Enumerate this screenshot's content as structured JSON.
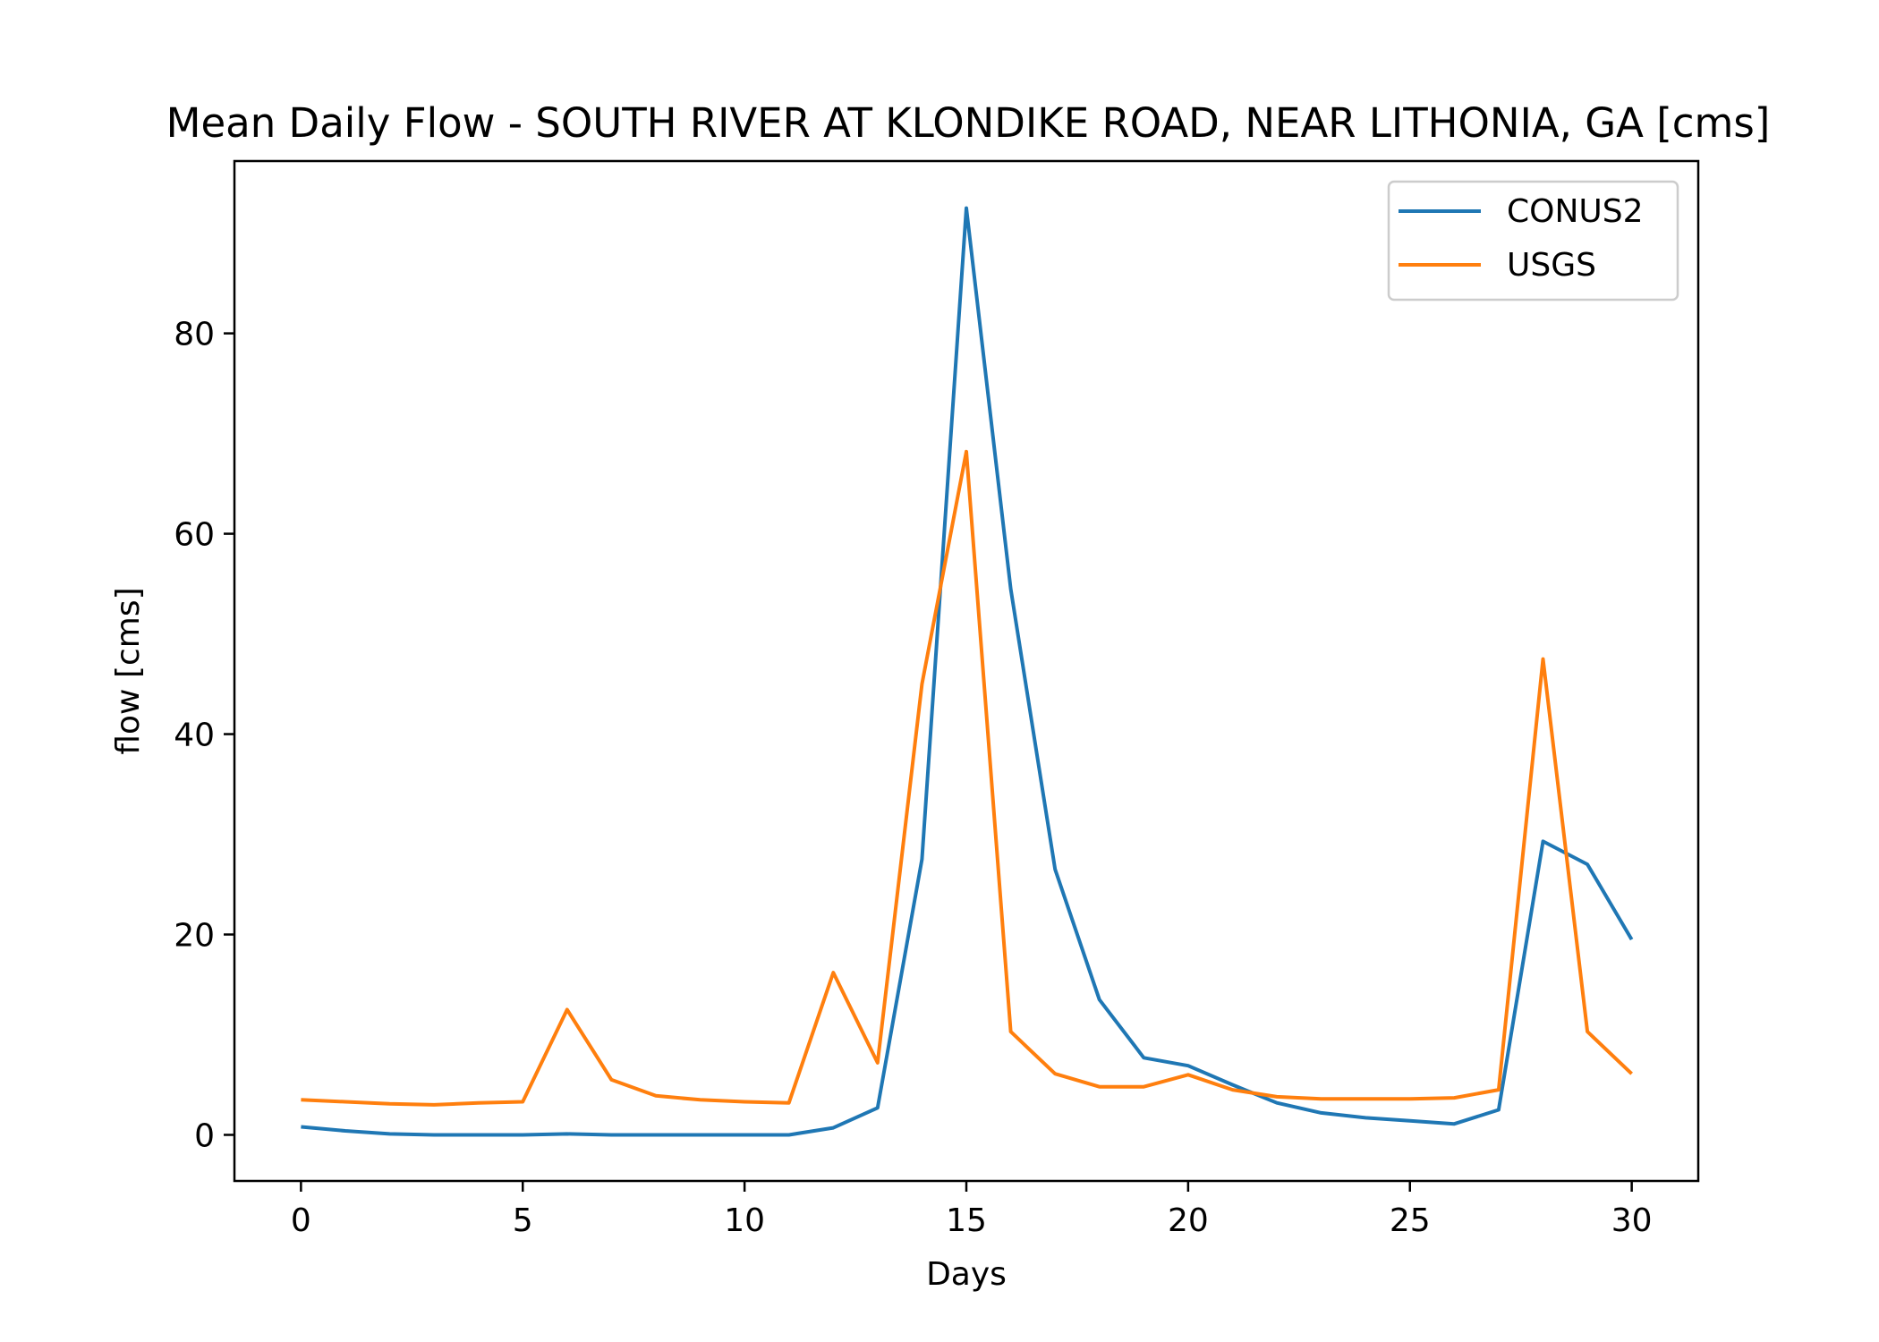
{
  "chart_data": {
    "type": "line",
    "title": "Mean Daily Flow - SOUTH RIVER AT KLONDIKE ROAD, NEAR LITHONIA, GA [cms]",
    "xlabel": "Days",
    "ylabel": "flow [cms]",
    "xlim": [
      -1.5,
      31.5
    ],
    "ylim": [
      -4.6,
      97.2
    ],
    "xticks": [
      0,
      5,
      10,
      15,
      20,
      25,
      30
    ],
    "yticks": [
      0,
      20,
      40,
      60,
      80
    ],
    "xtick_labels": [
      "0",
      "5",
      "10",
      "15",
      "20",
      "25",
      "30"
    ],
    "ytick_labels": [
      "0",
      "20",
      "40",
      "60",
      "80"
    ],
    "grid": false,
    "legend_position": "top-right",
    "x": [
      0,
      1,
      2,
      3,
      4,
      5,
      6,
      7,
      8,
      9,
      10,
      11,
      12,
      13,
      14,
      15,
      16,
      17,
      18,
      19,
      20,
      21,
      22,
      23,
      24,
      25,
      26,
      27,
      28,
      29,
      30
    ],
    "series": [
      {
        "name": "CONUS2",
        "color": "#1f77b4",
        "values": [
          0.8,
          0.4,
          0.1,
          0.0,
          0.0,
          0.0,
          0.1,
          0.0,
          0.0,
          0.0,
          0.0,
          0.0,
          0.7,
          2.7,
          27.5,
          92.5,
          54.5,
          26.5,
          13.5,
          7.7,
          6.9,
          5.0,
          3.2,
          2.2,
          1.7,
          1.4,
          1.1,
          2.5,
          29.3,
          27.0,
          19.5
        ]
      },
      {
        "name": "USGS",
        "color": "#ff7f0e",
        "values": [
          3.5,
          3.3,
          3.1,
          3.0,
          3.2,
          3.3,
          12.5,
          5.5,
          3.9,
          3.5,
          3.3,
          3.2,
          16.2,
          7.2,
          45.0,
          68.2,
          10.3,
          6.1,
          4.8,
          4.8,
          6.0,
          4.5,
          3.8,
          3.6,
          3.6,
          3.6,
          3.7,
          4.5,
          47.5,
          10.3,
          6.1
        ]
      }
    ]
  }
}
